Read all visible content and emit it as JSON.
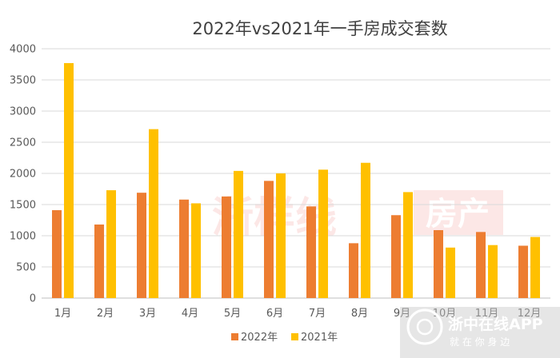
{
  "chart_data": {
    "type": "bar",
    "title": "2022年vs2021年一手房成交套数",
    "categories": [
      "1月",
      "2月",
      "3月",
      "4月",
      "5月",
      "6月",
      "7月",
      "8月",
      "9月",
      "10月",
      "11月",
      "12月"
    ],
    "series": [
      {
        "name": "2022年",
        "color": "#ED7D31",
        "values": [
          1410,
          1180,
          1690,
          1580,
          1630,
          1880,
          1470,
          880,
          1330,
          1090,
          1060,
          840
        ]
      },
      {
        "name": "2021年",
        "color": "#FFC000",
        "values": [
          3770,
          1730,
          2710,
          1520,
          2040,
          2000,
          2060,
          2170,
          1700,
          810,
          850,
          980
        ]
      }
    ],
    "ylim": [
      0,
      4000
    ],
    "yticks": [
      0,
      500,
      1000,
      1500,
      2000,
      2500,
      3000,
      3500,
      4000
    ],
    "grid": true,
    "legend": "bottom"
  },
  "watermark": {
    "center_brand": "浙样线",
    "center_badge": "房产",
    "app_name": "浙中在线APP",
    "app_slogan": "就 在 你 身 边"
  }
}
